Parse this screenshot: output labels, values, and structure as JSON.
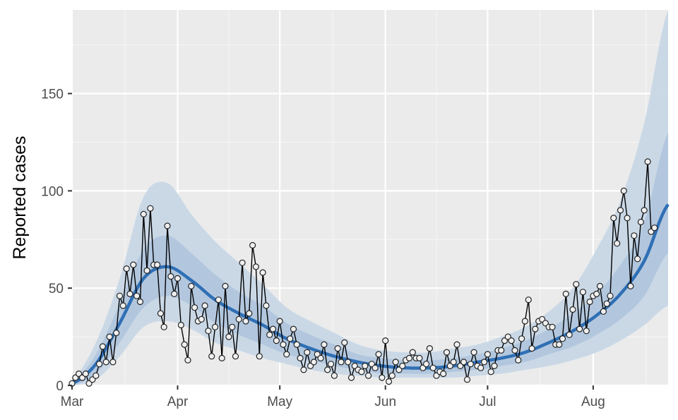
{
  "chart_data": {
    "type": "line",
    "ylabel": "Reported cases",
    "xlabel": "",
    "x_start": "2020-03-01",
    "x_end": "2020-08-23",
    "x_ticks": [
      "Mar",
      "Apr",
      "May",
      "Jun",
      "Jul",
      "Aug"
    ],
    "x_tick_dates": [
      "2020-03-01",
      "2020-04-01",
      "2020-05-01",
      "2020-06-01",
      "2020-07-01",
      "2020-08-01"
    ],
    "y_ticks": [
      0,
      50,
      100,
      150
    ],
    "ylim": [
      0,
      193
    ],
    "grid": true,
    "colors": {
      "panel": "#ebebeb",
      "grid_major": "#ffffff",
      "grid_minor": "#f5f5f5",
      "band_outer": "#c8d7e6",
      "band_inner": "#b0c6dd",
      "fit_line": "#2f6fb5",
      "observed_line": "#000000",
      "point_fill": "#f0f0f0",
      "point_stroke": "#222222"
    },
    "series": [
      {
        "name": "fit",
        "x": [
          "2020-03-01",
          "2020-03-08",
          "2020-03-15",
          "2020-03-22",
          "2020-03-29",
          "2020-04-05",
          "2020-04-12",
          "2020-04-19",
          "2020-04-26",
          "2020-05-03",
          "2020-05-10",
          "2020-05-17",
          "2020-05-24",
          "2020-05-31",
          "2020-06-07",
          "2020-06-14",
          "2020-06-21",
          "2020-06-28",
          "2020-07-05",
          "2020-07-12",
          "2020-07-19",
          "2020-07-26",
          "2020-08-02",
          "2020-08-09",
          "2020-08-16",
          "2020-08-23"
        ],
        "y": [
          1,
          11,
          32,
          55,
          61,
          54,
          44,
          37,
          31,
          24,
          19,
          15,
          12,
          10,
          9,
          9,
          10,
          12,
          14,
          17,
          22,
          28,
          36,
          47,
          64,
          93
        ],
        "lower_inner": [
          0,
          6,
          22,
          40,
          46,
          41,
          32,
          26,
          21,
          16,
          13,
          10,
          8,
          6,
          6,
          6,
          7,
          8,
          10,
          12,
          16,
          20,
          26,
          34,
          46,
          68
        ],
        "upper_inner": [
          2,
          16,
          42,
          70,
          77,
          68,
          57,
          48,
          41,
          32,
          26,
          21,
          16,
          14,
          13,
          13,
          14,
          16,
          19,
          23,
          29,
          37,
          47,
          62,
          84,
          130
        ],
        "lower_outer": [
          0,
          3,
          15,
          30,
          33,
          29,
          22,
          18,
          14,
          11,
          8,
          6,
          5,
          4,
          4,
          4,
          4,
          5,
          6,
          8,
          10,
          13,
          17,
          23,
          31,
          41
        ],
        "upper_outer": [
          3,
          22,
          55,
          97,
          104,
          88,
          74,
          63,
          52,
          40,
          33,
          27,
          21,
          18,
          17,
          17,
          19,
          21,
          25,
          30,
          38,
          50,
          70,
          95,
          135,
          193
        ]
      },
      {
        "name": "observed",
        "y": [
          1,
          4,
          6,
          4,
          6,
          1,
          3,
          5,
          11,
          20,
          12,
          25,
          12,
          27,
          46,
          41,
          60,
          47,
          62,
          46,
          43,
          88,
          59,
          91,
          62,
          62,
          37,
          30,
          82,
          56,
          47,
          55,
          31,
          21,
          13,
          51,
          40,
          33,
          34,
          41,
          28,
          15,
          30,
          44,
          14,
          51,
          25,
          30,
          15,
          34,
          63,
          33,
          37,
          72,
          61,
          15,
          58,
          41,
          26,
          29,
          23,
          33,
          21,
          16,
          24,
          29,
          21,
          14,
          8,
          17,
          10,
          12,
          16,
          14,
          21,
          8,
          11,
          5,
          19,
          12,
          22,
          12,
          4,
          10,
          8,
          7,
          10,
          5,
          11,
          9,
          16,
          4,
          23,
          2,
          5,
          12,
          8,
          10,
          13,
          14,
          17,
          14,
          14,
          9,
          11,
          19,
          9,
          5,
          7,
          6,
          17,
          10,
          12,
          21,
          10,
          12,
          3,
          11,
          17,
          10,
          9,
          12,
          16,
          7,
          10,
          18,
          18,
          23,
          25,
          23,
          18,
          13,
          24,
          33,
          44,
          19,
          29,
          33,
          34,
          32,
          30,
          30,
          21,
          21,
          24,
          47,
          26,
          39,
          52,
          29,
          48,
          28,
          43,
          46,
          47,
          51,
          38,
          42,
          46,
          86,
          73,
          90,
          100,
          86,
          51,
          77,
          65,
          84,
          90,
          115,
          79,
          81
        ]
      }
    ]
  }
}
